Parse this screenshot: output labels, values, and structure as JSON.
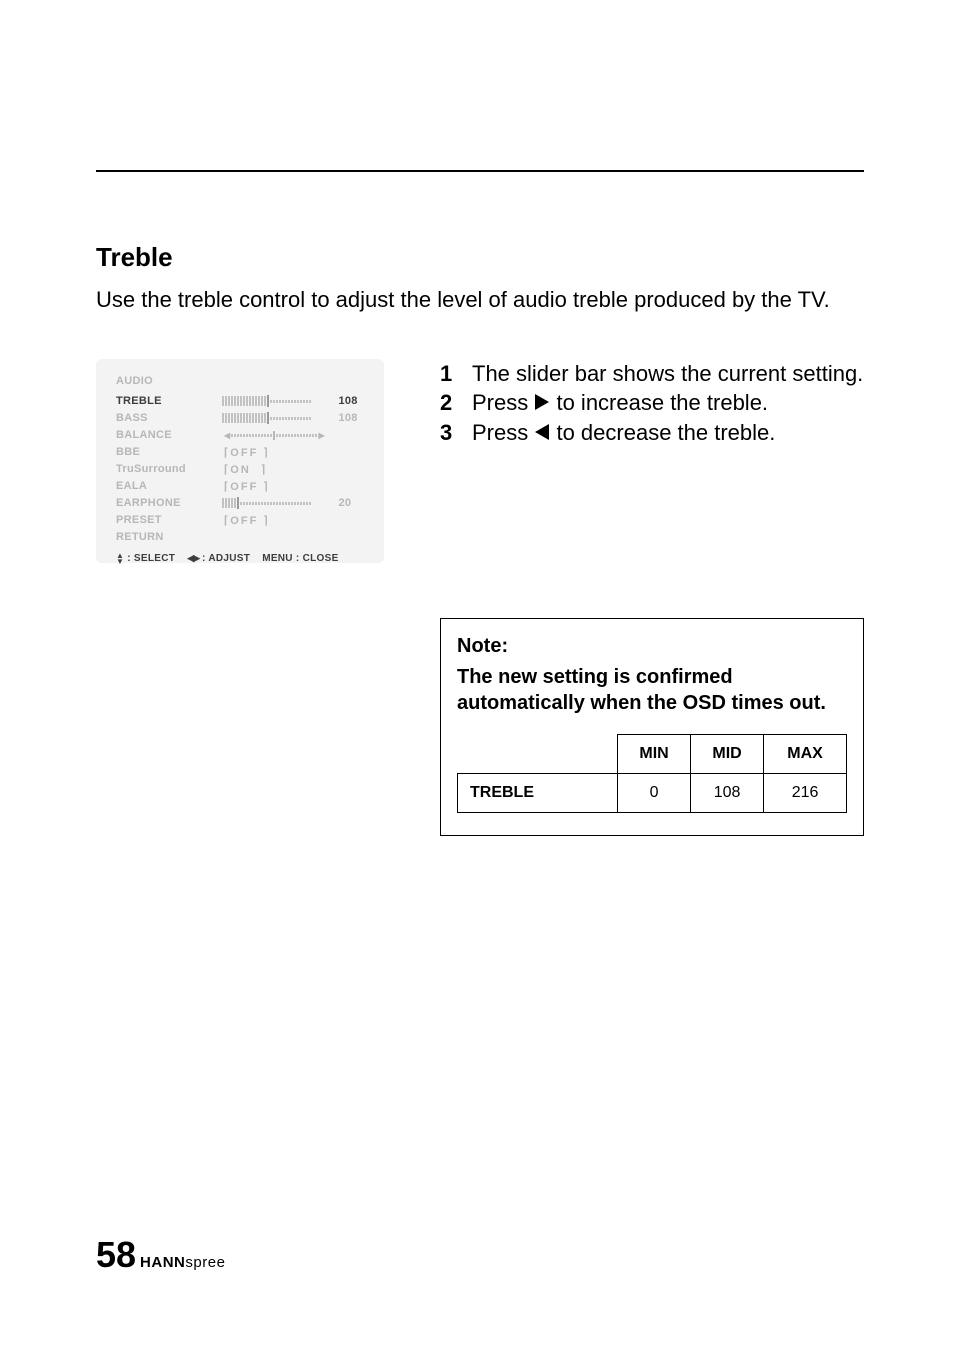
{
  "section": {
    "title": "Treble",
    "intro": "Use the treble control to adjust the level of audio treble produced by the TV."
  },
  "osd": {
    "heading": "AUDIO",
    "rows": [
      {
        "label": "TREBLE",
        "type": "slider",
        "value": "108",
        "active": true
      },
      {
        "label": "BASS",
        "type": "slider",
        "value": "108",
        "active": false
      },
      {
        "label": "BALANCE",
        "type": "balance",
        "value": "",
        "active": false
      },
      {
        "label": "BBE",
        "type": "bracket",
        "value": "OFF",
        "active": false
      },
      {
        "label": "TruSurround",
        "type": "bracket",
        "value": "ON",
        "active": false
      },
      {
        "label": "EALA",
        "type": "bracket",
        "value": "OFF",
        "active": false
      },
      {
        "label": "EARPHONE",
        "type": "slider_low",
        "value": "20",
        "active": false
      },
      {
        "label": "PRESET",
        "type": "bracket",
        "value": "OFF",
        "active": false
      },
      {
        "label": "RETURN",
        "type": "none",
        "value": "",
        "active": false
      }
    ],
    "footer": {
      "select": ": SELECT",
      "adjust": ": ADJUST",
      "close": "MENU : CLOSE"
    }
  },
  "steps": [
    {
      "num": "1",
      "text": "The slider bar shows the current setting."
    },
    {
      "num": "2",
      "pre": "Press ",
      "icon": "right",
      "post": " to increase the treble."
    },
    {
      "num": "3",
      "pre": "Press ",
      "icon": "left",
      "post": " to decrease the treble."
    }
  ],
  "note": {
    "title": "Note:",
    "text": "The new setting is confirmed automatically when the OSD times out.",
    "table": {
      "headers": [
        "",
        "MIN",
        "MID",
        "MAX"
      ],
      "row": {
        "label": "TREBLE",
        "min": "0",
        "mid": "108",
        "max": "216"
      }
    }
  },
  "footer": {
    "page": "58",
    "brand_bold": "HANN",
    "brand_light": "spree"
  }
}
